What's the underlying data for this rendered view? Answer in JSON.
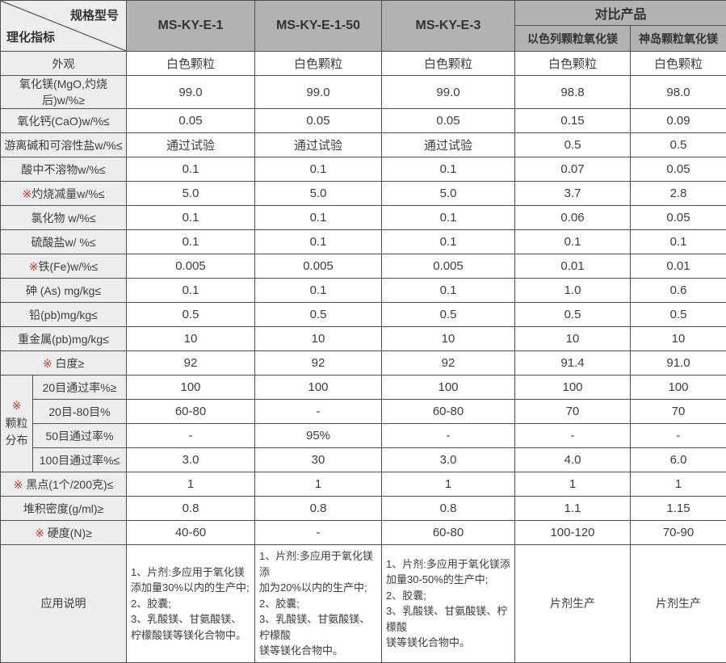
{
  "table": {
    "corner": {
      "top_label": "规格型号",
      "bottom_label": "理化指标"
    },
    "model_columns": [
      "MS-KY-E-1",
      "MS-KY-E-1-50",
      "MS-KY-E-3"
    ],
    "compare": {
      "group_label": "对比产品",
      "columns": [
        "以色列颗粒氧化镁",
        "神岛颗粒氧化镁"
      ]
    },
    "rows_top": [
      {
        "star": "",
        "label": "外观",
        "values": [
          "白色颗粒",
          "白色颗粒",
          "白色颗粒",
          "白色颗粒",
          "白色颗粒"
        ]
      },
      {
        "star": "",
        "label": "氧化镁(MgO,灼烧后)w/%≥",
        "values": [
          "99.0",
          "99.0",
          "99.0",
          "98.8",
          "98.0"
        ]
      },
      {
        "star": "",
        "label": "氧化钙(CaO)w/%≤",
        "values": [
          "0.05",
          "0.05",
          "0.05",
          "0.15",
          "0.09"
        ]
      },
      {
        "star": "",
        "label": "游离碱和可溶性盐w/%≤",
        "values": [
          "通过试验",
          "通过试验",
          "通过试验",
          "0.5",
          "0.5"
        ]
      },
      {
        "star": "",
        "label": "酸中不溶物w/%≤",
        "values": [
          "0.1",
          "0.1",
          "0.1",
          "0.07",
          "0.05"
        ]
      },
      {
        "star": "※",
        "label": "灼烧减量w/%≤",
        "values": [
          "5.0",
          "5.0",
          "5.0",
          "3.7",
          "2.8"
        ]
      },
      {
        "star": "",
        "label": "氯化物 w/%≤",
        "values": [
          "0.1",
          "0.1",
          "0.1",
          "0.06",
          "0.05"
        ]
      },
      {
        "star": "",
        "label": "硫酸盐w/ %≤",
        "values": [
          "0.1",
          "0.1",
          "0.1",
          "0.1",
          "0.1"
        ]
      },
      {
        "star": "※",
        "label": "铁(Fe)w/%≤",
        "values": [
          "0.005",
          "0.005",
          "0.005",
          "0.01",
          "0.01"
        ]
      },
      {
        "star": "",
        "label": "砷 (As) mg/kg≤",
        "values": [
          "0.1",
          "0.1",
          "0.1",
          "1.0",
          "0.6"
        ]
      },
      {
        "star": "",
        "label": "铅(pb)mg/kg≤",
        "values": [
          "0.5",
          "0.5",
          "0.5",
          "0.5",
          "0.5"
        ]
      },
      {
        "star": "",
        "label": "重金属(pb)mg/kg≤",
        "values": [
          "10",
          "10",
          "10",
          "10",
          "10"
        ]
      },
      {
        "star": "※ ",
        "label": "白度≥",
        "values": [
          "92",
          "92",
          "92",
          "91.4",
          "91.0"
        ]
      }
    ],
    "granule": {
      "marker": "※",
      "label_lines": [
        "颗粒",
        "分布"
      ],
      "sub_rows": [
        {
          "label": "20目通过率%≥",
          "values": [
            "100",
            "100",
            "100",
            "100",
            "100"
          ]
        },
        {
          "label": "20目-80目%",
          "values": [
            "60-80",
            "-",
            "60-80",
            "70",
            "70"
          ]
        },
        {
          "label": "50目通过率%",
          "values": [
            "-",
            "95%",
            "-",
            "-",
            "-"
          ]
        },
        {
          "label": "100目通过率%≤",
          "values": [
            "3.0",
            "30",
            "3.0",
            "4.0",
            "6.0"
          ]
        }
      ]
    },
    "rows_bottom": [
      {
        "star": "※ ",
        "label": "黑点(1个/200克)≤",
        "values": [
          "1",
          "1",
          "1",
          "1",
          "1"
        ]
      },
      {
        "star": "",
        "label": "堆积密度(g/ml)≥",
        "values": [
          "0.8",
          "0.8",
          "0.8",
          "1.1",
          "1.15"
        ]
      },
      {
        "star": "※ ",
        "label": "硬度(N)≥",
        "values": [
          "40-60",
          "-",
          "60-80",
          "100-120",
          "70-90"
        ]
      }
    ],
    "application": {
      "label": "应用说明",
      "values": [
        "1、片剂:多应用于氧化镁\n添加量30%以内的生产中;\n2、胶囊;\n3、乳酸镁、甘氨酸镁、\n柠檬酸镁等镁化合物中。",
        "1、片剂:多应用于氧化镁添\n加为20%以内的生产中;\n2、胶囊;\n3、乳酸镁、甘氨酸镁、柠檬酸\n镁等镁化合物中。",
        "1、片剂:多应用于氧化镁添\n加量30-50%的生产中;\n2、胶囊;\n3、乳酸镁、甘氨酸镁、柠檬酸\n镁等镁化合物中。",
        "片剂生产",
        "片剂生产"
      ]
    },
    "colors": {
      "header_bg": "#b2b2b2",
      "label_bg": "#ededed",
      "border": "#4f4f4f",
      "text": "#3d3d3d",
      "star_red": "#cd3a2e"
    }
  }
}
